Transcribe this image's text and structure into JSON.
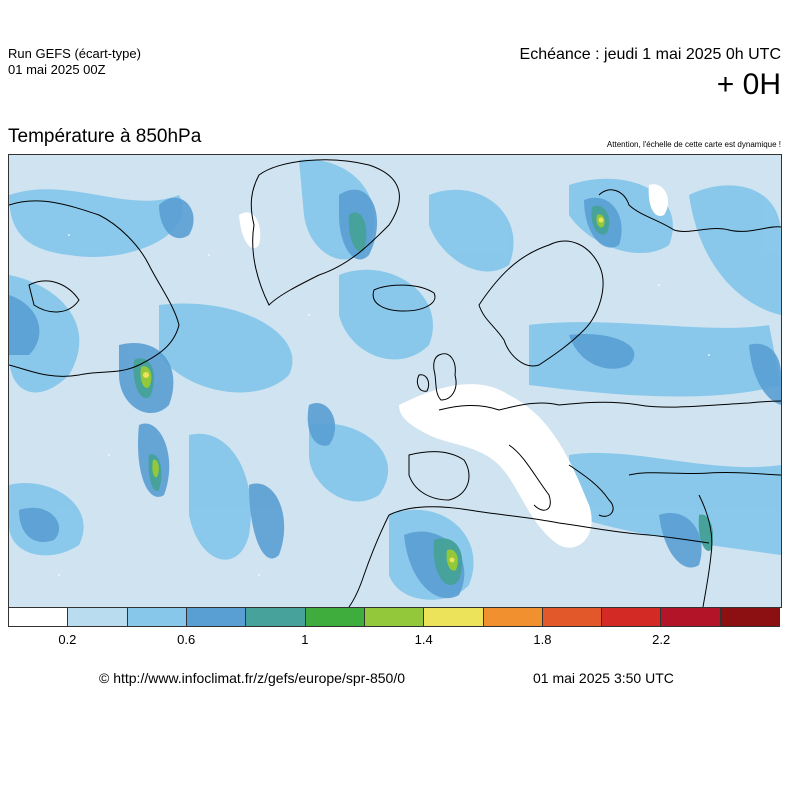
{
  "header": {
    "run_title": "Run GEFS (écart-type)",
    "run_date": "01 mai 2025 00Z",
    "echeance": "Echéance : jeudi 1 mai 2025 0h UTC",
    "hour": "+ 0H"
  },
  "map": {
    "title": "Température à 850hPa",
    "scale_note": "Attention, l'échelle de cette carte est dynamique !",
    "colors": {
      "ocean_base": "#cfe3f1",
      "coastline": "#000000"
    }
  },
  "legend": {
    "colors": [
      "#ffffff",
      "#b9dcef",
      "#86c7ea",
      "#5a9fd4",
      "#46a29a",
      "#3fac3e",
      "#93c83b",
      "#ede35a",
      "#f0902e",
      "#e2582a",
      "#d32a26",
      "#b31428",
      "#8c0f12"
    ],
    "ticks": [
      "0.2",
      "0.6",
      "1",
      "1.4",
      "1.8",
      "2.2"
    ]
  },
  "footer": {
    "copyright": "© http://www.infoclimat.fr/z/gefs/europe/spr-850/0",
    "generated": "01 mai 2025  3:50 UTC"
  }
}
